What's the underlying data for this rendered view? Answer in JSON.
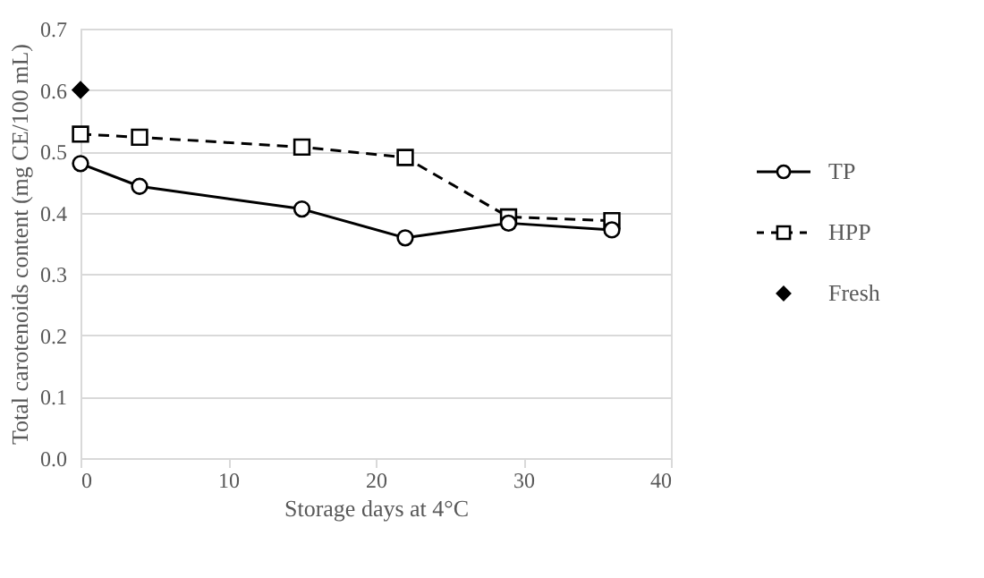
{
  "chart_data": {
    "type": "line",
    "xlabel": "Storage days at 4°C",
    "ylabel": "Total carotenoids content (mg CE/100 mL)",
    "xlim": [
      0,
      40
    ],
    "xticks": [
      0,
      10,
      20,
      30,
      40
    ],
    "ylim": [
      0,
      0.7
    ],
    "yticks": [
      {
        "value": 0,
        "label": "0.0"
      },
      0.1,
      0.2,
      0.3,
      0.4,
      0.5,
      0.6,
      0.7
    ],
    "grid": "y",
    "legend": "right",
    "series": [
      {
        "name": "TP",
        "color": "#000000",
        "marker": "circle",
        "line_style": "solid",
        "x": [
          0,
          4,
          15,
          22,
          29,
          36
        ],
        "values": [
          0.48,
          0.443,
          0.406,
          0.359,
          0.383,
          0.372
        ]
      },
      {
        "name": "HPP",
        "color": "#000000",
        "marker": "square",
        "line_style": "dashed",
        "x": [
          0,
          4,
          15,
          22,
          29,
          36
        ],
        "values": [
          0.528,
          0.523,
          0.507,
          0.49,
          0.393,
          0.387
        ]
      },
      {
        "name": "Fresh",
        "type": "scatter",
        "color": "#000000",
        "marker": "diamond",
        "x": [
          0
        ],
        "values": [
          0.6
        ]
      }
    ]
  }
}
